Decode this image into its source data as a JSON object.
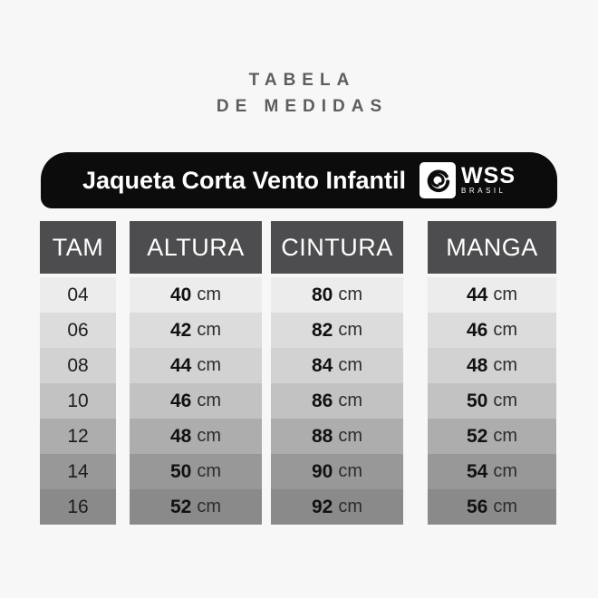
{
  "header": {
    "title_line1": "TABELA",
    "title_line2": "DE MEDIDAS"
  },
  "banner": {
    "product_name": "Jaqueta Corta Vento Infantil",
    "brand_name": "WSS",
    "brand_sub": "BRASIL",
    "bg_color": "#0c0c0c"
  },
  "table": {
    "headers": [
      "TAM",
      "ALTURA",
      "CINTURA",
      "MANGA"
    ],
    "header_bg": "#4d4d4f",
    "unit": "cm",
    "row_shades": [
      "#ececec",
      "#dcdcdc",
      "#d2d2d2",
      "#c2c2c2",
      "#adadad",
      "#989898",
      "#8a8a8a"
    ],
    "rows": [
      {
        "tam": "04",
        "altura": "40",
        "cintura": "80",
        "manga": "44"
      },
      {
        "tam": "06",
        "altura": "42",
        "cintura": "82",
        "manga": "46"
      },
      {
        "tam": "08",
        "altura": "44",
        "cintura": "84",
        "manga": "48"
      },
      {
        "tam": "10",
        "altura": "46",
        "cintura": "86",
        "manga": "50"
      },
      {
        "tam": "12",
        "altura": "48",
        "cintura": "88",
        "manga": "52"
      },
      {
        "tam": "14",
        "altura": "50",
        "cintura": "90",
        "manga": "54"
      },
      {
        "tam": "16",
        "altura": "52",
        "cintura": "92",
        "manga": "56"
      }
    ]
  },
  "chart_data": {
    "type": "table",
    "title": "TABELA DE MEDIDAS",
    "subtitle": "Jaqueta Corta Vento Infantil",
    "brand": "WSS BRASIL",
    "columns": [
      "TAM",
      "ALTURA",
      "CINTURA",
      "MANGA"
    ],
    "unit": "cm",
    "rows": [
      [
        "04",
        40,
        80,
        44
      ],
      [
        "06",
        42,
        82,
        46
      ],
      [
        "08",
        44,
        84,
        48
      ],
      [
        "10",
        46,
        86,
        50
      ],
      [
        "12",
        48,
        88,
        52
      ],
      [
        "14",
        50,
        90,
        54
      ],
      [
        "16",
        52,
        92,
        56
      ]
    ]
  }
}
